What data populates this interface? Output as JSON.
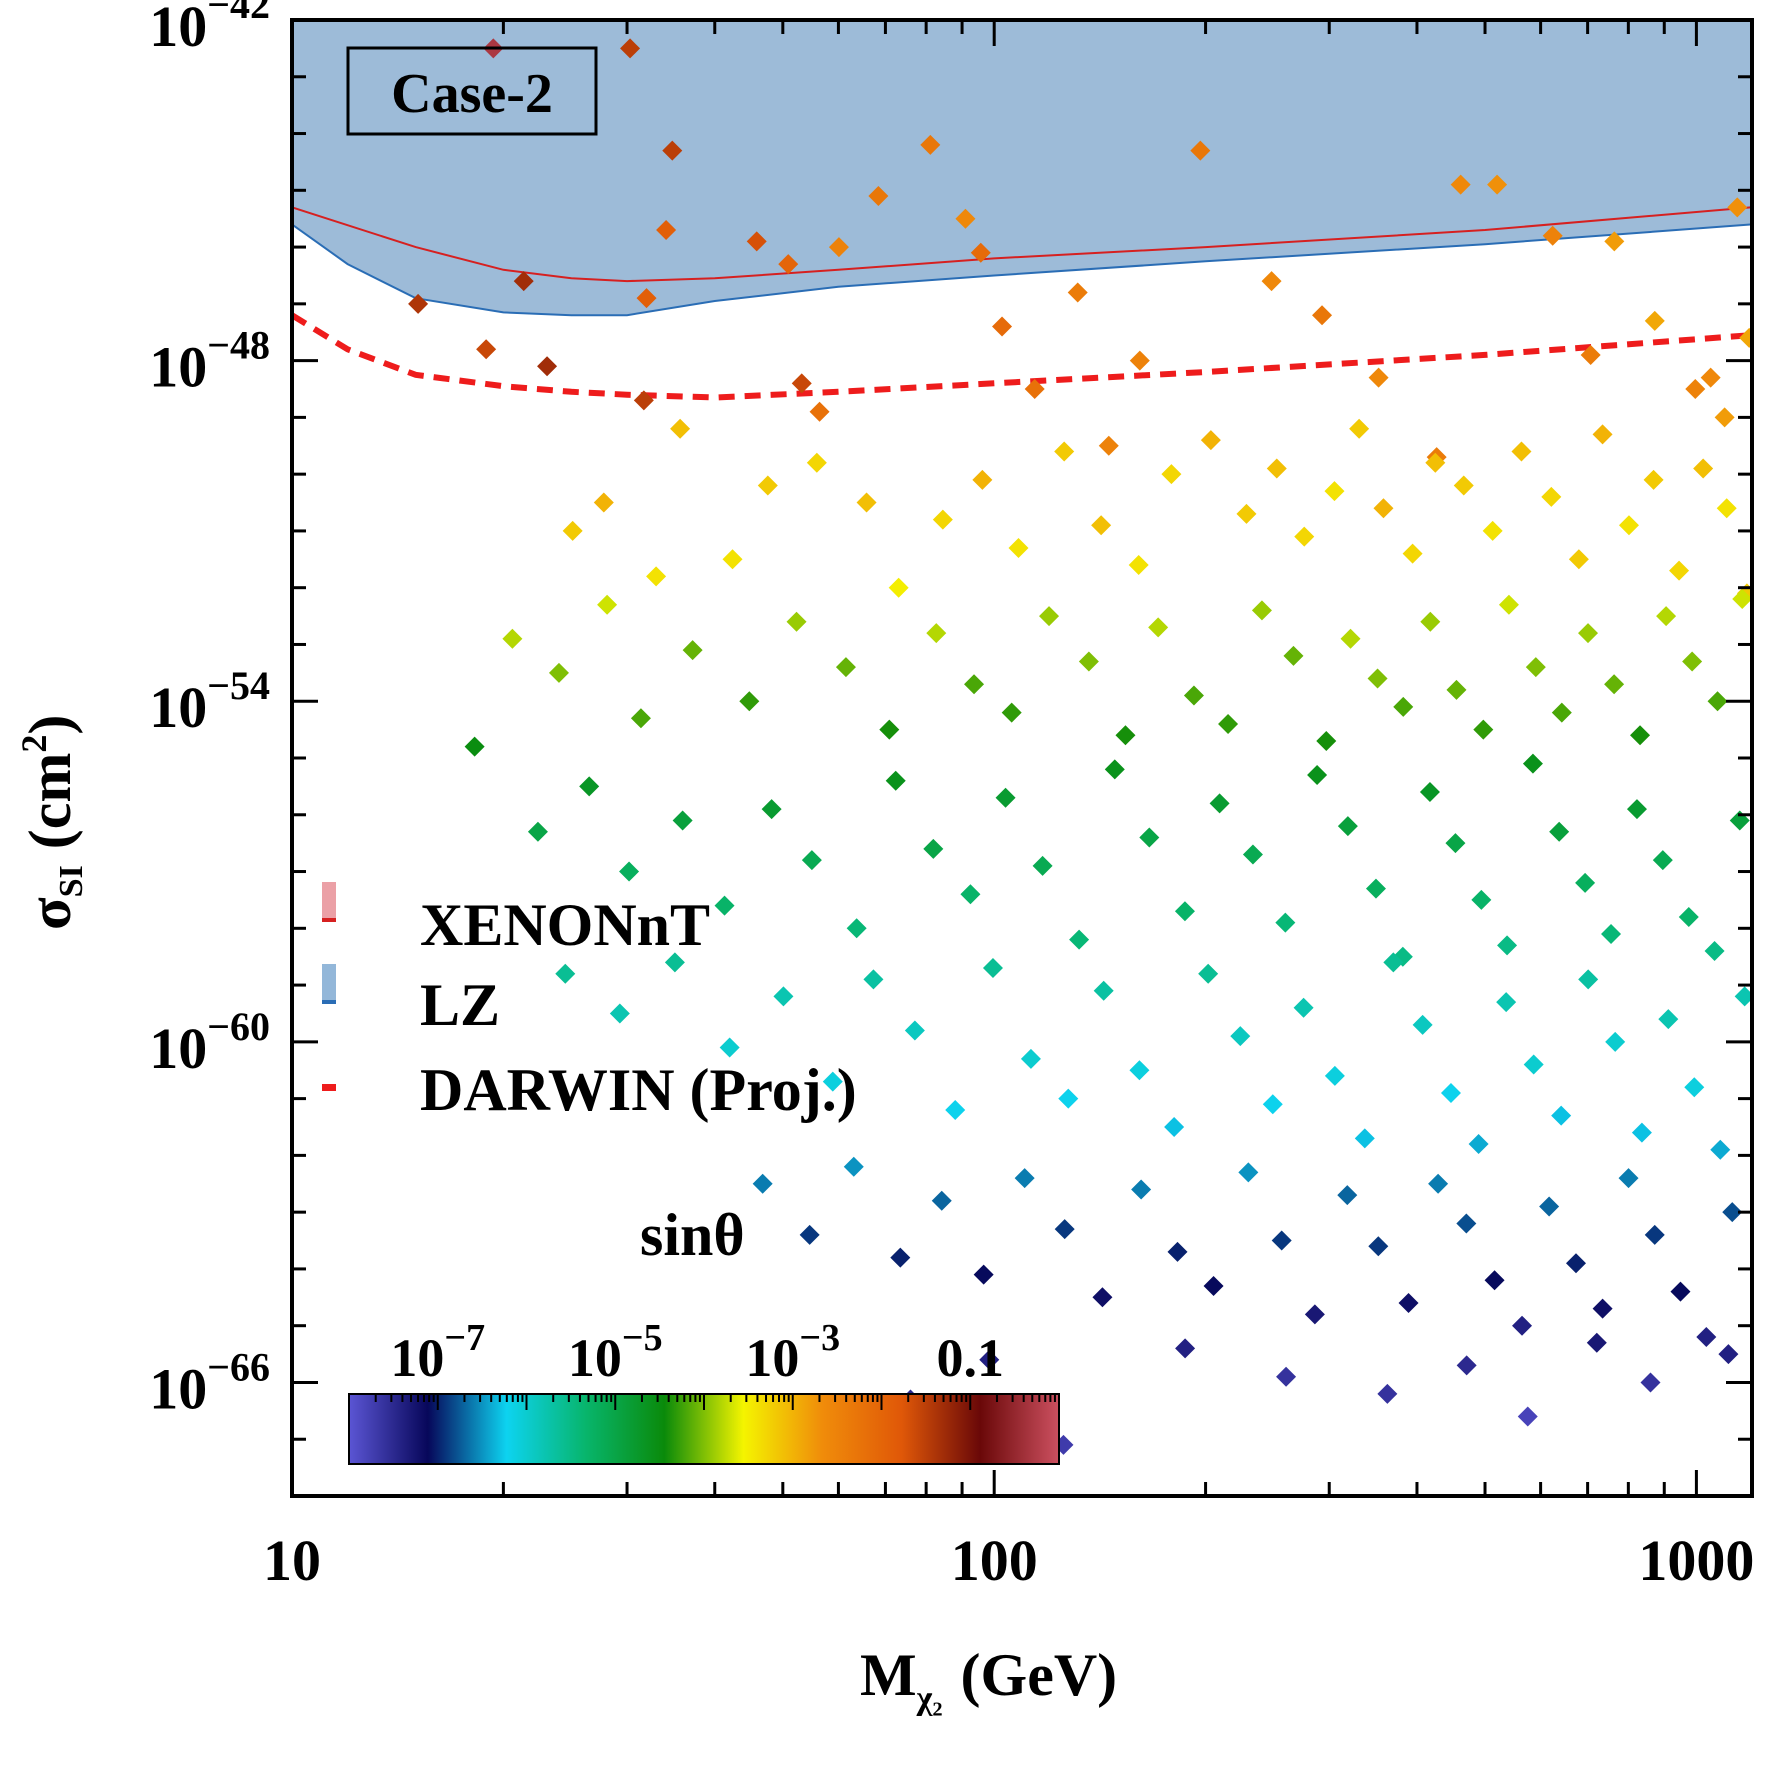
{
  "chart_data": {
    "type": "scatter",
    "title": "",
    "case_label": "Case-2",
    "xlabel_main": "M",
    "xlabel_sub": "χ₂",
    "xlabel_unit": "(GeV)",
    "ylabel_main": "σ",
    "ylabel_sub": "SI",
    "ylabel_unit_pre": "(cm",
    "ylabel_unit_sup": "2",
    "ylabel_unit_post": ")",
    "x_scale": "log",
    "y_scale": "log",
    "xlim": [
      10,
      1200
    ],
    "ylim_exp": [
      -68,
      -42
    ],
    "x_ticks": [
      {
        "value": 10,
        "label": "10"
      },
      {
        "value": 100,
        "label": "100"
      },
      {
        "value": 1000,
        "label": "1000"
      }
    ],
    "y_ticks": [
      {
        "exp": -42,
        "base": "10",
        "sup": "−42"
      },
      {
        "exp": -48,
        "base": "10",
        "sup": "−48"
      },
      {
        "exp": -54,
        "base": "10",
        "sup": "−54"
      },
      {
        "exp": -60,
        "base": "10",
        "sup": "−60"
      },
      {
        "exp": -66,
        "base": "10",
        "sup": "−66"
      }
    ],
    "legend": {
      "placement": "center-left",
      "entries": [
        {
          "name": "XENONnT",
          "style": "band",
          "fill": "#eba0a6",
          "line": "#d62020"
        },
        {
          "name": "LZ",
          "style": "band",
          "fill": "#93b7d9",
          "line": "#2a6db5"
        },
        {
          "name": "DARWIN (Proj.)",
          "style": "dashed",
          "line": "#ee1c1c"
        }
      ]
    },
    "colorbar": {
      "title": "sinθ",
      "scale": "log",
      "range_exp": [
        -8,
        0
      ],
      "tick_labels": [
        {
          "exp": -7,
          "base": "10",
          "sup": "−7"
        },
        {
          "exp": -5,
          "base": "10",
          "sup": "−5"
        },
        {
          "exp": -3,
          "base": "10",
          "sup": "−3"
        },
        {
          "exp": -1,
          "base": "0.1",
          "sup": ""
        }
      ],
      "colors": [
        "#5b55d4",
        "#07075a",
        "#0dd3f0",
        "#08b56c",
        "#0a8a0a",
        "#f4f400",
        "#f08c0a",
        "#e05808",
        "#6a0808",
        "#cc5060"
      ]
    },
    "xenon_limit": {
      "x": [
        10,
        15,
        20,
        25,
        30,
        40,
        60,
        100,
        200,
        500,
        1200
      ],
      "y_exp": [
        -45.3,
        -46.0,
        -46.4,
        -46.55,
        -46.6,
        -46.55,
        -46.4,
        -46.2,
        -46.0,
        -45.7,
        -45.3
      ],
      "fill": "#b57a8c",
      "line": "#d62020"
    },
    "lz_limit": {
      "x": [
        10,
        12,
        15,
        20,
        25,
        30,
        40,
        60,
        100,
        200,
        500,
        1200
      ],
      "y_exp": [
        -45.6,
        -46.3,
        -46.9,
        -47.15,
        -47.2,
        -47.2,
        -46.95,
        -46.7,
        -46.5,
        -46.25,
        -45.95,
        -45.6
      ],
      "fill": "#9dbbd8",
      "line": "#2a6db5"
    },
    "darwin_projection": {
      "x": [
        10,
        12,
        15,
        20,
        25,
        30,
        40,
        60,
        100,
        200,
        500,
        1200
      ],
      "y_exp": [
        -47.2,
        -47.8,
        -48.25,
        -48.45,
        -48.55,
        -48.6,
        -48.65,
        -48.55,
        -48.4,
        -48.2,
        -47.9,
        -47.55
      ],
      "line": "#ee1c1c",
      "style": "dashed"
    },
    "points": [
      [
        19.35,
        -42.5,
        -0.3
      ],
      [
        15.12,
        -47.0,
        -1.4
      ],
      [
        18.9,
        -47.8,
        -1.6
      ],
      [
        21.38,
        -46.6,
        -1.3
      ],
      [
        23.08,
        -48.1,
        -1.3
      ],
      [
        31.98,
        -46.9,
        -1.9
      ],
      [
        34.1,
        -45.7,
        -1.9
      ],
      [
        30.3,
        -42.5,
        -1.5
      ],
      [
        31.7,
        -48.7,
        -1.5
      ],
      [
        34.8,
        -44.3,
        -1.5
      ],
      [
        45.9,
        -45.9,
        -1.7
      ],
      [
        50.9,
        -46.3,
        -2.0
      ],
      [
        53.2,
        -48.4,
        -1.6
      ],
      [
        56.4,
        -48.9,
        -2.2
      ],
      [
        60.1,
        -46.0,
        -2.5
      ],
      [
        68.4,
        -45.1,
        -2.3
      ],
      [
        81.1,
        -44.2,
        -2.3
      ],
      [
        91.0,
        -45.5,
        -2.6
      ],
      [
        95.7,
        -46.1,
        -2.1
      ],
      [
        102.6,
        -47.4,
        -2.1
      ],
      [
        114.2,
        -48.5,
        -2.2
      ],
      [
        131.5,
        -46.8,
        -2.4
      ],
      [
        145.6,
        -49.5,
        -2.5
      ],
      [
        161.2,
        -48.0,
        -2.5
      ],
      [
        196.6,
        -44.3,
        -2.3
      ],
      [
        248.3,
        -46.6,
        -2.6
      ],
      [
        293.0,
        -47.2,
        -2.3
      ],
      [
        352.7,
        -48.3,
        -2.6
      ],
      [
        426.7,
        -49.7,
        -2.4
      ],
      [
        461.6,
        -44.9,
        -2.6
      ],
      [
        520.2,
        -44.9,
        -2.7
      ],
      [
        624.2,
        -45.8,
        -2.5
      ],
      [
        707.0,
        -47.9,
        -2.4
      ],
      [
        764.0,
        -45.9,
        -2.8
      ],
      [
        872.4,
        -47.3,
        -2.9
      ],
      [
        996.3,
        -48.5,
        -2.5
      ],
      [
        1047.9,
        -48.3,
        -2.6
      ],
      [
        1097.0,
        -49.0,
        -2.8
      ],
      [
        1143.5,
        -45.3,
        -2.7
      ],
      [
        1189.0,
        -47.6,
        -2.9
      ],
      [
        25.1,
        -51.0,
        -3.2
      ],
      [
        27.8,
        -50.5,
        -3.0
      ],
      [
        33.0,
        -51.8,
        -3.4
      ],
      [
        35.7,
        -49.2,
        -3.1
      ],
      [
        42.4,
        -51.5,
        -3.4
      ],
      [
        47.6,
        -50.2,
        -3.2
      ],
      [
        55.9,
        -49.8,
        -3.3
      ],
      [
        65.8,
        -50.5,
        -3.1
      ],
      [
        73.1,
        -52.0,
        -3.5
      ],
      [
        84.5,
        -50.8,
        -3.3
      ],
      [
        96.2,
        -50.1,
        -3.0
      ],
      [
        108.3,
        -51.3,
        -3.4
      ],
      [
        125.8,
        -49.6,
        -3.2
      ],
      [
        142.0,
        -50.9,
        -3.1
      ],
      [
        160.6,
        -51.6,
        -3.4
      ],
      [
        178.8,
        -50.0,
        -3.3
      ],
      [
        203.5,
        -49.4,
        -3.0
      ],
      [
        228.7,
        -50.7,
        -3.2
      ],
      [
        252.6,
        -49.9,
        -3.1
      ],
      [
        276.4,
        -51.1,
        -3.3
      ],
      [
        305.2,
        -50.3,
        -3.4
      ],
      [
        330.9,
        -49.2,
        -3.2
      ],
      [
        358.4,
        -50.6,
        -3.0
      ],
      [
        394.3,
        -51.4,
        -3.3
      ],
      [
        424.8,
        -49.8,
        -3.1
      ],
      [
        466.3,
        -50.2,
        -3.2
      ],
      [
        512.7,
        -51.0,
        -3.4
      ],
      [
        563.5,
        -49.6,
        -3.1
      ],
      [
        621.4,
        -50.4,
        -3.3
      ],
      [
        680.2,
        -51.5,
        -3.2
      ],
      [
        735.1,
        -49.3,
        -3.0
      ],
      [
        801.6,
        -50.9,
        -3.4
      ],
      [
        869.0,
        -50.1,
        -3.2
      ],
      [
        944.7,
        -51.7,
        -3.3
      ],
      [
        1022.4,
        -49.9,
        -3.1
      ],
      [
        1104.5,
        -50.6,
        -3.4
      ],
      [
        1180.2,
        -52.1,
        -3.2
      ],
      [
        20.6,
        -52.9,
        -3.8
      ],
      [
        24.0,
        -53.5,
        -4.0
      ],
      [
        28.1,
        -52.3,
        -3.7
      ],
      [
        31.4,
        -54.3,
        -4.2
      ],
      [
        37.2,
        -53.1,
        -4.1
      ],
      [
        44.8,
        -54.0,
        -4.3
      ],
      [
        52.3,
        -52.6,
        -3.9
      ],
      [
        61.5,
        -53.4,
        -4.1
      ],
      [
        70.9,
        -54.5,
        -4.4
      ],
      [
        82.7,
        -52.8,
        -3.8
      ],
      [
        93.6,
        -53.7,
        -4.2
      ],
      [
        105.9,
        -54.2,
        -4.3
      ],
      [
        119.7,
        -52.5,
        -3.9
      ],
      [
        136.4,
        -53.3,
        -4.0
      ],
      [
        153.8,
        -54.6,
        -4.4
      ],
      [
        171.2,
        -52.7,
        -3.8
      ],
      [
        192.5,
        -53.9,
        -4.2
      ],
      [
        215.3,
        -54.4,
        -4.3
      ],
      [
        240.6,
        -52.4,
        -3.9
      ],
      [
        266.8,
        -53.2,
        -4.1
      ],
      [
        297.1,
        -54.7,
        -4.4
      ],
      [
        321.7,
        -52.9,
        -3.8
      ],
      [
        351.5,
        -53.6,
        -4.0
      ],
      [
        382.4,
        -54.1,
        -4.2
      ],
      [
        417.9,
        -52.6,
        -3.9
      ],
      [
        455.3,
        -53.8,
        -4.1
      ],
      [
        497.2,
        -54.5,
        -4.3
      ],
      [
        540.8,
        -52.3,
        -3.7
      ],
      [
        590.6,
        -53.4,
        -4.0
      ],
      [
        643.2,
        -54.2,
        -4.2
      ],
      [
        700.9,
        -52.8,
        -3.9
      ],
      [
        763.5,
        -53.7,
        -4.1
      ],
      [
        831.2,
        -54.6,
        -4.4
      ],
      [
        905.4,
        -52.5,
        -3.8
      ],
      [
        986.1,
        -53.3,
        -4.0
      ],
      [
        1071.8,
        -54.0,
        -4.2
      ],
      [
        1162.3,
        -52.2,
        -3.7
      ],
      [
        18.2,
        -54.8,
        -4.5
      ],
      [
        22.4,
        -56.3,
        -5.0
      ],
      [
        26.5,
        -55.5,
        -4.7
      ],
      [
        30.2,
        -57.0,
        -5.2
      ],
      [
        36.0,
        -56.1,
        -4.9
      ],
      [
        41.3,
        -57.6,
        -5.3
      ],
      [
        48.2,
        -55.9,
        -4.8
      ],
      [
        55.0,
        -56.8,
        -5.1
      ],
      [
        63.7,
        -58.0,
        -5.4
      ],
      [
        72.4,
        -55.4,
        -4.6
      ],
      [
        81.9,
        -56.6,
        -5.0
      ],
      [
        92.5,
        -57.4,
        -5.3
      ],
      [
        103.8,
        -55.7,
        -4.8
      ],
      [
        117.2,
        -56.9,
        -5.1
      ],
      [
        132.1,
        -58.2,
        -5.4
      ],
      [
        148.5,
        -55.2,
        -4.6
      ],
      [
        166.3,
        -56.4,
        -5.0
      ],
      [
        186.9,
        -57.7,
        -5.3
      ],
      [
        209.4,
        -55.8,
        -4.8
      ],
      [
        233.6,
        -56.7,
        -5.1
      ],
      [
        259.8,
        -57.9,
        -5.4
      ],
      [
        288.3,
        -55.3,
        -4.6
      ],
      [
        318.9,
        -56.2,
        -4.9
      ],
      [
        349.7,
        -57.3,
        -5.2
      ],
      [
        381.9,
        -58.5,
        -5.5
      ],
      [
        417.4,
        -55.6,
        -4.7
      ],
      [
        453.8,
        -56.5,
        -5.0
      ],
      [
        494.0,
        -57.5,
        -5.3
      ],
      [
        537.5,
        -58.3,
        -5.5
      ],
      [
        585.1,
        -55.1,
        -4.6
      ],
      [
        637.6,
        -56.3,
        -4.9
      ],
      [
        694.2,
        -57.2,
        -5.2
      ],
      [
        755.8,
        -58.1,
        -5.4
      ],
      [
        822.9,
        -55.9,
        -4.8
      ],
      [
        895.7,
        -56.8,
        -5.1
      ],
      [
        975.3,
        -57.8,
        -5.3
      ],
      [
        1061.4,
        -58.4,
        -5.5
      ],
      [
        1152.7,
        -56.1,
        -4.9
      ],
      [
        24.5,
        -58.8,
        -5.6
      ],
      [
        29.3,
        -59.5,
        -5.8
      ],
      [
        35.1,
        -58.6,
        -5.6
      ],
      [
        42.0,
        -60.1,
        -6.0
      ],
      [
        50.1,
        -59.2,
        -5.8
      ],
      [
        58.9,
        -60.7,
        -6.1
      ],
      [
        67.3,
        -58.9,
        -5.7
      ],
      [
        77.1,
        -59.8,
        -5.9
      ],
      [
        88.0,
        -61.2,
        -6.2
      ],
      [
        99.6,
        -58.7,
        -5.6
      ],
      [
        112.8,
        -60.3,
        -6.0
      ],
      [
        127.5,
        -61.0,
        -6.2
      ],
      [
        143.2,
        -59.1,
        -5.7
      ],
      [
        161.0,
        -60.5,
        -6.1
      ],
      [
        180.4,
        -61.5,
        -6.3
      ],
      [
        201.7,
        -58.8,
        -5.6
      ],
      [
        224.1,
        -59.9,
        -5.9
      ],
      [
        249.3,
        -61.1,
        -6.2
      ],
      [
        275.8,
        -59.4,
        -5.8
      ],
      [
        305.6,
        -60.6,
        -6.1
      ],
      [
        337.1,
        -61.7,
        -6.3
      ],
      [
        370.2,
        -58.6,
        -5.6
      ],
      [
        407.5,
        -59.7,
        -5.9
      ],
      [
        447.2,
        -60.9,
        -6.2
      ],
      [
        489.6,
        -61.8,
        -6.4
      ],
      [
        535.9,
        -59.3,
        -5.8
      ],
      [
        586.5,
        -60.4,
        -6.0
      ],
      [
        641.8,
        -61.3,
        -6.3
      ],
      [
        701.3,
        -58.9,
        -5.7
      ],
      [
        766.2,
        -60.0,
        -6.0
      ],
      [
        836.4,
        -61.6,
        -6.3
      ],
      [
        912.0,
        -59.6,
        -5.8
      ],
      [
        993.1,
        -60.8,
        -6.1
      ],
      [
        1081.5,
        -61.9,
        -6.4
      ],
      [
        1171.4,
        -59.2,
        -5.8
      ],
      [
        46.8,
        -62.5,
        -6.6
      ],
      [
        54.6,
        -63.4,
        -6.9
      ],
      [
        63.1,
        -62.2,
        -6.5
      ],
      [
        73.5,
        -63.8,
        -7.0
      ],
      [
        84.2,
        -62.8,
        -6.7
      ],
      [
        96.6,
        -64.1,
        -7.1
      ],
      [
        110.5,
        -62.4,
        -6.6
      ],
      [
        126.0,
        -63.3,
        -6.9
      ],
      [
        142.6,
        -64.5,
        -7.2
      ],
      [
        161.9,
        -62.6,
        -6.6
      ],
      [
        182.4,
        -63.7,
        -7.0
      ],
      [
        205.3,
        -64.3,
        -7.1
      ],
      [
        230.1,
        -62.3,
        -6.5
      ],
      [
        256.7,
        -63.5,
        -6.9
      ],
      [
        286.2,
        -64.8,
        -7.3
      ],
      [
        318.3,
        -62.7,
        -6.7
      ],
      [
        352.4,
        -63.6,
        -6.9
      ],
      [
        389.1,
        -64.6,
        -7.2
      ],
      [
        428.7,
        -62.5,
        -6.6
      ],
      [
        470.3,
        -63.2,
        -6.8
      ],
      [
        515.9,
        -64.2,
        -7.1
      ],
      [
        564.5,
        -65.0,
        -7.4
      ],
      [
        617.0,
        -62.9,
        -6.7
      ],
      [
        673.8,
        -63.9,
        -7.0
      ],
      [
        735.2,
        -64.7,
        -7.2
      ],
      [
        800.5,
        -62.4,
        -6.6
      ],
      [
        872.3,
        -63.4,
        -6.9
      ],
      [
        949.1,
        -64.4,
        -7.1
      ],
      [
        1033.0,
        -65.2,
        -7.4
      ],
      [
        1124.8,
        -63.0,
        -6.8
      ],
      [
        76.0,
        -66.3,
        -7.5
      ],
      [
        98.4,
        -65.6,
        -7.4
      ],
      [
        125.5,
        -67.1,
        -7.7
      ],
      [
        187.0,
        -65.4,
        -7.4
      ],
      [
        260.4,
        -65.9,
        -7.6
      ],
      [
        363.0,
        -66.2,
        -7.6
      ],
      [
        470.8,
        -65.7,
        -7.5
      ],
      [
        575.2,
        -66.6,
        -7.8
      ],
      [
        721.4,
        -65.3,
        -7.3
      ],
      [
        860.3,
        -66.0,
        -7.6
      ],
      [
        1110.7,
        -65.5,
        -7.4
      ]
    ]
  }
}
